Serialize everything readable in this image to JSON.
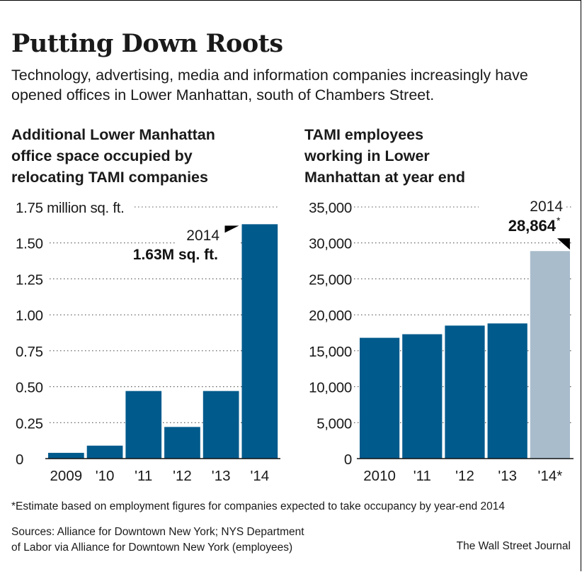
{
  "header": {
    "title": "Putting Down Roots",
    "subtitle": "Technology, advertising, media and information companies increasingly have opened offices in Lower Manhattan, south of Chambers Street."
  },
  "chart_data": [
    {
      "type": "bar",
      "title": "Additional Lower Manhattan\noffice space occupied by\nrelocating TAMI companies",
      "categories": [
        "2009",
        "'10",
        "'11",
        "'12",
        "'13",
        "'14"
      ],
      "values": [
        0.04,
        0.09,
        0.47,
        0.22,
        0.47,
        1.63
      ],
      "ylim": [
        0,
        1.75
      ],
      "yticks": [
        0,
        0.25,
        0.5,
        0.75,
        1.0,
        1.25,
        1.5,
        1.75
      ],
      "ytick_labels": [
        "0",
        "0.25",
        "0.50",
        "0.75",
        "1.00",
        "1.25",
        "1.50",
        "1.75 million sq. ft."
      ],
      "grid": true,
      "bar_colors": [
        "#005a8c",
        "#005a8c",
        "#005a8c",
        "#005a8c",
        "#005a8c",
        "#005a8c"
      ],
      "annotation": {
        "year": "2014",
        "label": "1.63M sq. ft.",
        "category_index": 5
      }
    },
    {
      "type": "bar",
      "title": "TAMI employees\nworking in Lower\nManhattan at year end",
      "categories": [
        "2010",
        "'11",
        "'12",
        "'13",
        "'14*"
      ],
      "values": [
        16800,
        17300,
        18500,
        18800,
        28864
      ],
      "ylim": [
        0,
        35000
      ],
      "yticks": [
        0,
        5000,
        10000,
        15000,
        20000,
        25000,
        30000,
        35000
      ],
      "ytick_labels": [
        "0",
        "5,000",
        "10,000",
        "15,000",
        "20,000",
        "25,000",
        "30,000",
        "35,000"
      ],
      "grid": true,
      "bar_colors": [
        "#005a8c",
        "#005a8c",
        "#005a8c",
        "#005a8c",
        "#a9bccc"
      ],
      "annotation": {
        "year": "2014",
        "label": "28,864",
        "marker": "*",
        "category_index": 4
      }
    }
  ],
  "footer": {
    "footnote": "*Estimate based on employment figures for companies expected to take occupancy by year-end 2014",
    "sources_line1": "Sources: Alliance for Downtown New York; NYS Department",
    "sources_line2": "of Labor via Alliance for Downtown New York (employees)",
    "credit": "The Wall Street Journal"
  }
}
